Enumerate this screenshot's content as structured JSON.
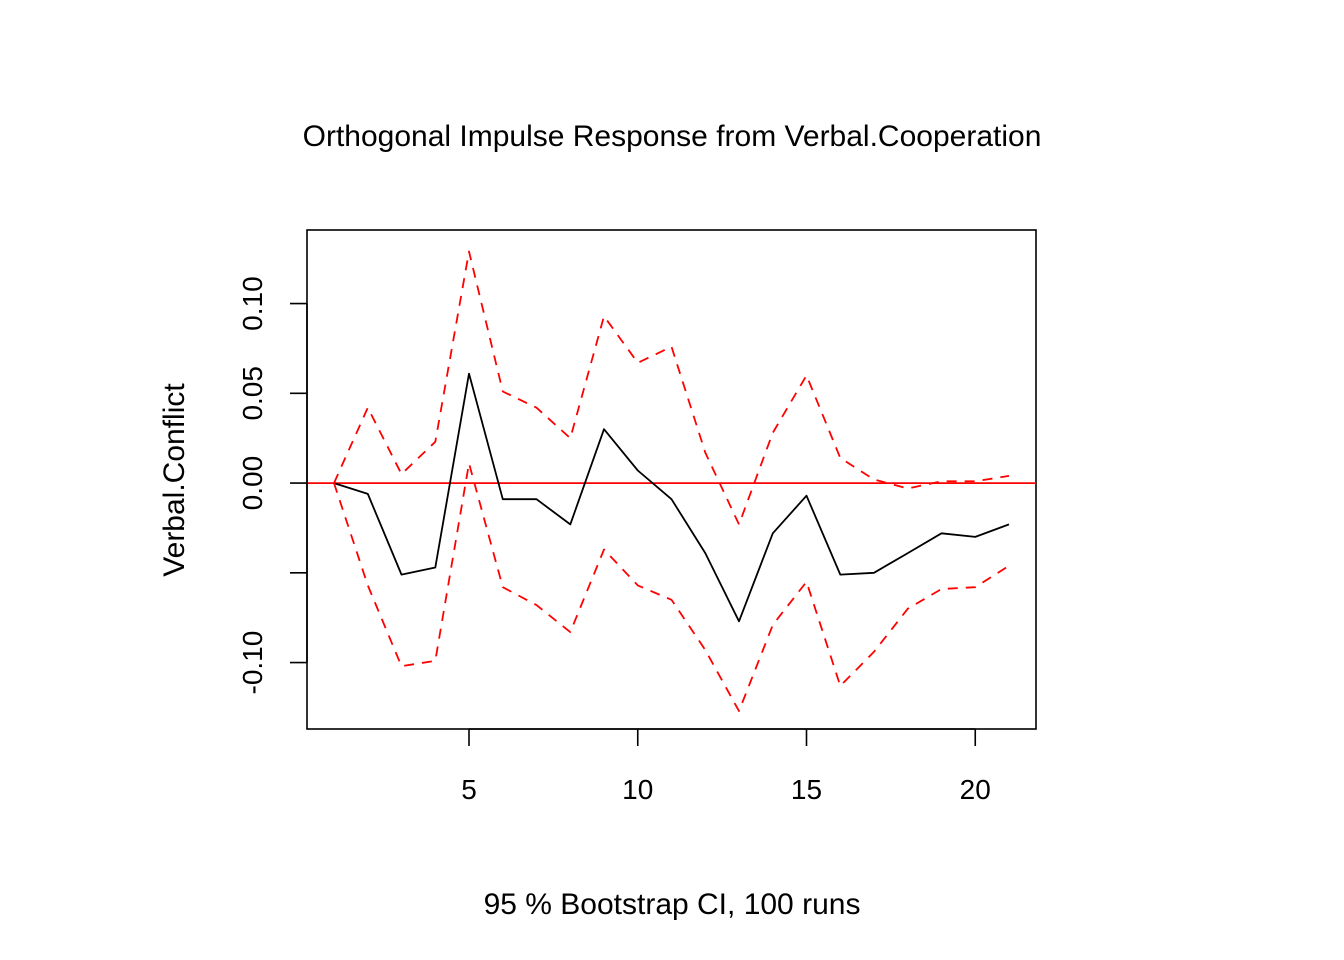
{
  "chart_data": {
    "type": "line",
    "title": "Orthogonal Impulse Response from Verbal.Cooperation",
    "xlabel": "95 % Bootstrap CI,  100 runs",
    "ylabel": "Verbal.Conflict",
    "xlim": [
      0.2,
      21.8
    ],
    "ylim": [
      -0.137,
      0.141
    ],
    "x_ticks": [
      5,
      10,
      15,
      20
    ],
    "x_tick_labels": [
      "5",
      "10",
      "15",
      "20"
    ],
    "y_ticks": [
      -0.1,
      -0.05,
      0.0,
      0.05,
      0.1
    ],
    "y_tick_labels": [
      "-0.10",
      "",
      "0.00",
      "0.05",
      "0.10"
    ],
    "grid": false,
    "x": [
      1,
      2,
      3,
      4,
      5,
      6,
      7,
      8,
      9,
      10,
      11,
      12,
      13,
      14,
      15,
      16,
      17,
      18,
      19,
      20,
      21
    ],
    "series": [
      {
        "role": "response",
        "values": [
          0.0,
          -0.006,
          -0.051,
          -0.047,
          0.061,
          -0.009,
          -0.009,
          -0.023,
          0.03,
          0.007,
          -0.009,
          -0.039,
          -0.077,
          -0.028,
          -0.007,
          -0.051,
          -0.05,
          -0.039,
          -0.028,
          -0.03,
          -0.023
        ],
        "color": "#000000",
        "dash": "solid"
      },
      {
        "role": "upper",
        "values": [
          0.0,
          0.042,
          0.005,
          0.023,
          0.129,
          0.051,
          0.042,
          0.025,
          0.093,
          0.067,
          0.076,
          0.017,
          -0.023,
          0.028,
          0.06,
          0.014,
          0.002,
          -0.003,
          0.001,
          0.001,
          0.004
        ],
        "color": "#ff0000",
        "dash": "dashed"
      },
      {
        "role": "lower",
        "values": [
          0.0,
          -0.057,
          -0.102,
          -0.099,
          0.011,
          -0.058,
          -0.068,
          -0.083,
          -0.037,
          -0.057,
          -0.065,
          -0.093,
          -0.127,
          -0.079,
          -0.055,
          -0.113,
          -0.094,
          -0.07,
          -0.059,
          -0.058,
          -0.046
        ],
        "color": "#ff0000",
        "dash": "dashed"
      }
    ],
    "reference_line": {
      "y": 0,
      "color": "#ff0000"
    }
  }
}
